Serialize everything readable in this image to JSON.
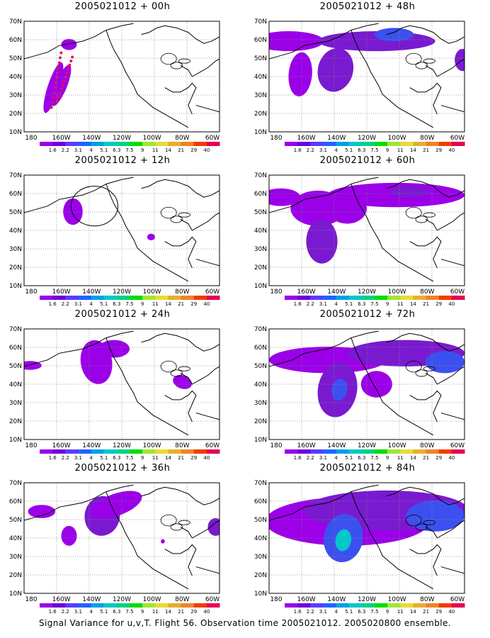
{
  "panels": [
    {
      "title": "2005021012 + 00h",
      "blobs": [
        {
          "cx": 15,
          "cy": 60,
          "rx": 3,
          "ry": 24,
          "rot": 18,
          "level": 0
        },
        {
          "cx": 19,
          "cy": 58,
          "rx": 3,
          "ry": 20,
          "rot": 22,
          "level": 0
        },
        {
          "cx": 23,
          "cy": 21,
          "rx": 4,
          "ry": 5,
          "rot": 0,
          "level": 0
        }
      ],
      "dots": true
    },
    {
      "title": "2005021012 + 48h",
      "blobs": [
        {
          "cx": 10,
          "cy": 18,
          "rx": 18,
          "ry": 9,
          "rot": 0,
          "level": 0
        },
        {
          "cx": 16,
          "cy": 48,
          "rx": 6,
          "ry": 20,
          "rot": 5,
          "level": 0
        },
        {
          "cx": 34,
          "cy": 44,
          "rx": 9,
          "ry": 20,
          "rot": 15,
          "level": 1
        },
        {
          "cx": 55,
          "cy": 18,
          "rx": 30,
          "ry": 9,
          "rot": 0,
          "level": 1
        },
        {
          "cx": 64,
          "cy": 12,
          "rx": 10,
          "ry": 6,
          "rot": 0,
          "level": 2
        },
        {
          "cx": 99,
          "cy": 35,
          "rx": 4,
          "ry": 10,
          "rot": 0,
          "level": 1
        }
      ]
    },
    {
      "title": "2005021012 + 12h",
      "blobs": [
        {
          "cx": 25,
          "cy": 33,
          "rx": 5,
          "ry": 12,
          "rot": 0,
          "level": 0
        },
        {
          "cx": 65,
          "cy": 56,
          "rx": 2,
          "ry": 3,
          "rot": 0,
          "level": 0
        }
      ],
      "ellipse": true
    },
    {
      "title": "2005021012 + 60h",
      "blobs": [
        {
          "cx": 6,
          "cy": 20,
          "rx": 10,
          "ry": 8,
          "rot": 0,
          "level": 0
        },
        {
          "cx": 25,
          "cy": 30,
          "rx": 14,
          "ry": 16,
          "rot": 0,
          "level": 0
        },
        {
          "cx": 27,
          "cy": 60,
          "rx": 8,
          "ry": 20,
          "rot": 0,
          "level": 1
        },
        {
          "cx": 40,
          "cy": 30,
          "rx": 10,
          "ry": 14,
          "rot": 0,
          "level": 0
        },
        {
          "cx": 65,
          "cy": 18,
          "rx": 35,
          "ry": 11,
          "rot": 0,
          "level": 0
        },
        {
          "cx": 72,
          "cy": 15,
          "rx": 10,
          "ry": 5,
          "rot": 0,
          "level": 1
        }
      ]
    },
    {
      "title": "2005021012 + 24h",
      "blobs": [
        {
          "cx": 3,
          "cy": 33,
          "rx": 6,
          "ry": 4,
          "rot": 0,
          "level": 0
        },
        {
          "cx": 37,
          "cy": 30,
          "rx": 8,
          "ry": 20,
          "rot": -10,
          "level": 0
        },
        {
          "cx": 46,
          "cy": 18,
          "rx": 8,
          "ry": 8,
          "rot": 0,
          "level": 0
        },
        {
          "cx": 81,
          "cy": 48,
          "rx": 5,
          "ry": 6,
          "rot": 20,
          "level": 0
        }
      ]
    },
    {
      "title": "2005021012 + 72h",
      "blobs": [
        {
          "cx": 30,
          "cy": 28,
          "rx": 30,
          "ry": 12,
          "rot": 0,
          "level": 0
        },
        {
          "cx": 70,
          "cy": 22,
          "rx": 30,
          "ry": 12,
          "rot": 0,
          "level": 1
        },
        {
          "cx": 35,
          "cy": 55,
          "rx": 10,
          "ry": 25,
          "rot": 10,
          "level": 1
        },
        {
          "cx": 36,
          "cy": 55,
          "rx": 4,
          "ry": 10,
          "rot": 10,
          "level": 2
        },
        {
          "cx": 55,
          "cy": 50,
          "rx": 8,
          "ry": 12,
          "rot": 0,
          "level": 0
        },
        {
          "cx": 90,
          "cy": 30,
          "rx": 10,
          "ry": 10,
          "rot": 0,
          "level": 2
        }
      ]
    },
    {
      "title": "2005021012 + 36h",
      "blobs": [
        {
          "cx": 9,
          "cy": 26,
          "rx": 7,
          "ry": 6,
          "rot": 0,
          "level": 0
        },
        {
          "cx": 23,
          "cy": 48,
          "rx": 4,
          "ry": 9,
          "rot": 0,
          "level": 0
        },
        {
          "cx": 40,
          "cy": 30,
          "rx": 9,
          "ry": 18,
          "rot": 10,
          "level": 1
        },
        {
          "cx": 47,
          "cy": 20,
          "rx": 14,
          "ry": 10,
          "rot": -20,
          "level": 0
        },
        {
          "cx": 71,
          "cy": 53,
          "rx": 1,
          "ry": 2,
          "rot": 0,
          "level": 0
        },
        {
          "cx": 98,
          "cy": 40,
          "rx": 4,
          "ry": 8,
          "rot": 0,
          "level": 1
        }
      ]
    },
    {
      "title": "2005021012 + 84h",
      "blobs": [
        {
          "cx": 40,
          "cy": 35,
          "rx": 42,
          "ry": 22,
          "rot": 0,
          "level": 0
        },
        {
          "cx": 60,
          "cy": 25,
          "rx": 42,
          "ry": 18,
          "rot": 0,
          "level": 1
        },
        {
          "cx": 38,
          "cy": 50,
          "rx": 10,
          "ry": 22,
          "rot": 10,
          "level": 2
        },
        {
          "cx": 38,
          "cy": 52,
          "rx": 4,
          "ry": 10,
          "rot": 10,
          "level": 3
        },
        {
          "cx": 85,
          "cy": 30,
          "rx": 15,
          "ry": 14,
          "rot": 0,
          "level": 2
        }
      ]
    }
  ],
  "axes": {
    "y_labels": [
      "70N",
      "60N",
      "50N",
      "40N",
      "30N",
      "20N",
      "10N"
    ],
    "x_labels": [
      "180",
      "160W",
      "140W",
      "120W",
      "100W",
      "80W",
      "60W"
    ]
  },
  "colorbar": {
    "labels": [
      "1.6",
      "2.2",
      "3.1",
      "4",
      "5.1",
      "6.3",
      "7.5",
      "9",
      "11",
      "14",
      "21",
      "29",
      "40"
    ],
    "colors": [
      "#9b00e8",
      "#6e00dc",
      "#5a3cff",
      "#1e64ff",
      "#00a0e6",
      "#00c8c8",
      "#00d282",
      "#00dc00",
      "#a0e632",
      "#e6dc32",
      "#e6af2d",
      "#f08228",
      "#f03c00",
      "#e60050"
    ]
  },
  "shade_colors": [
    "#9b00e8",
    "#7a1ad0",
    "#3c50f0",
    "#00c8c8"
  ],
  "caption": "Signal Variance for u,v,T. Flight 56. Observation time 2005021012. 2005020800 ensemble."
}
